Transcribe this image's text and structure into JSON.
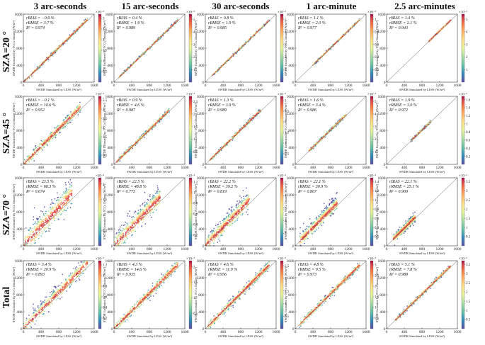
{
  "columns": [
    "3 arc-seconds",
    "15 arc-seconds",
    "30 arc-seconds",
    "1 arc-minute",
    "2.5 arc-minutes"
  ],
  "rows": [
    "SZA=20 °",
    "SZA=45 °",
    "SZA=70 °",
    "Total"
  ],
  "axes": {
    "xlabel": "SWDR Simulated by LESS (W/m²)",
    "ylabel": "SWDR Estimated by TCCs Dataset (W/m²)",
    "ticks": [
      "0",
      "400",
      "800",
      "1200",
      "1600"
    ],
    "lim": [
      0,
      1600
    ]
  },
  "chart_data": {
    "type": "scatter",
    "subtype": "density-scatter-grid",
    "xlabel": "SWDR Simulated by LESS (W/m²)",
    "ylabel": "SWDR Estimated by TCCs Dataset (W/m²)",
    "xlim": [
      0,
      1600
    ],
    "ylim": [
      0,
      1600
    ],
    "reference_line": "1:1",
    "colorbar_scale_label": "×10⁻³",
    "panels": [
      {
        "row": "SZA=20 °",
        "col": "3 arc-seconds",
        "rbias": "rBIAS = −0.9 %",
        "rrmse": "rRMSE = 3.7 %",
        "r2": "R² = 0.974",
        "xmin": 0,
        "xmax": 1450,
        "spread": 0.35,
        "cb_ticks": [
          "0.5",
          "1",
          "1.5",
          "2",
          "2.5",
          "3"
        ]
      },
      {
        "row": "SZA=20 °",
        "col": "15 arc-seconds",
        "rbias": "rBIAS = 0.4 %",
        "rrmse": "rRMSE = 1.9 %",
        "r2": "R² = 0.989",
        "xmin": 100,
        "xmax": 1450,
        "spread": 0.22,
        "cb_ticks": [
          "1",
          "2",
          "3",
          "4",
          "5"
        ]
      },
      {
        "row": "SZA=20 °",
        "col": "30 arc-seconds",
        "rbias": "rBIAS = 0.8 %",
        "rrmse": "rRMSE = 1.9 %",
        "r2": "R² = 0.985",
        "xmin": 150,
        "xmax": 1450,
        "spread": 0.2,
        "cb_ticks": [
          "1",
          "2",
          "3",
          "4",
          "5"
        ]
      },
      {
        "row": "SZA=20 °",
        "col": "1 arc-minute",
        "rbias": "rBIAS = 1.1 %",
        "rrmse": "rRMSE = 2.0 %",
        "r2": "R² = 0.977",
        "xmin": 400,
        "xmax": 1450,
        "spread": 0.2,
        "cb_ticks": [
          "0.2",
          "0.4",
          "0.6",
          "0.8",
          "1"
        ]
      },
      {
        "row": "SZA=20 °",
        "col": "2.5 arc-minutes",
        "rbias": "rBIAS = 1.4 %",
        "rrmse": "rRMSE = 2.1 %",
        "r2": "R² = 0.943",
        "xmin": 950,
        "xmax": 1450,
        "spread": 0.12,
        "cb_ticks": [
          "1",
          "2",
          "3",
          "4",
          "5"
        ]
      },
      {
        "row": "SZA=45 °",
        "col": "3 arc-seconds",
        "rbias": "rBIAS = −0.1 %",
        "rrmse": "rRMSE = 10.6 %",
        "r2": "R² = 0.952",
        "xmin": 0,
        "xmax": 1300,
        "spread": 0.9,
        "cb_ticks": [
          "0.5",
          "1",
          "1.5",
          "2",
          "2.5",
          "3",
          "3.5"
        ]
      },
      {
        "row": "SZA=45 °",
        "col": "15 arc-seconds",
        "rbias": "rBIAS = 0.9 %",
        "rrmse": "rRMSE = 4.6 %",
        "r2": "R² = 0.987",
        "xmin": 50,
        "xmax": 1250,
        "spread": 0.4,
        "cb_ticks": [
          "0.5",
          "1",
          "1.5",
          "2",
          "2.5"
        ]
      },
      {
        "row": "SZA=45 °",
        "col": "30 arc-seconds",
        "rbias": "rBIAS = 1.3 %",
        "rrmse": "rRMSE = 3.9 %",
        "r2": "R² = 0.989",
        "xmin": 100,
        "xmax": 1250,
        "spread": 0.35,
        "cb_ticks": [
          "0.5",
          "1",
          "1.5",
          "2",
          "2.5",
          "3"
        ]
      },
      {
        "row": "SZA=45 °",
        "col": "1 arc-minute",
        "rbias": "rBIAS = 1.6 %",
        "rrmse": "rRMSE = 3.4 %",
        "r2": "R² = 0.986",
        "xmin": 300,
        "xmax": 1150,
        "spread": 0.3,
        "cb_ticks": [
          "1",
          "2",
          "3",
          "4",
          "5"
        ]
      },
      {
        "row": "SZA=45 °",
        "col": "2.5 arc-minutes",
        "rbias": "rBIAS = 1.9 %",
        "rrmse": "rRMSE = 3.0 %",
        "r2": "R² = 0.972",
        "xmin": 550,
        "xmax": 1000,
        "spread": 0.2,
        "cb_ticks": [
          "0.2",
          "0.4",
          "0.6",
          "0.8",
          "1",
          "1.2",
          "1.4",
          "1.6"
        ]
      },
      {
        "row": "SZA=70 °",
        "col": "3 arc-seconds",
        "rbias": "rBIAS = 23.5 %",
        "rrmse": "rRMSE = 68.3 %",
        "r2": "R² = 0.674",
        "xmin": 0,
        "xmax": 1100,
        "spread": 2.2,
        "cb_ticks": [
          "0.5",
          "1",
          "1.5",
          "2"
        ]
      },
      {
        "row": "SZA=70 °",
        "col": "15 arc-seconds",
        "rbias": "rBIAS = 22.5 %",
        "rrmse": "rRMSE = 48.8 %",
        "r2": "R² = 0.773",
        "xmin": 0,
        "xmax": 1050,
        "spread": 1.8,
        "cb_ticks": [
          "0.2",
          "0.4",
          "0.6",
          "0.8",
          "1",
          "1.2"
        ]
      },
      {
        "row": "SZA=70 °",
        "col": "30 arc-seconds",
        "rbias": "rBIAS = 22.2 %",
        "rrmse": "rRMSE = 39.2 %",
        "r2": "R² = 0.819",
        "xmin": 0,
        "xmax": 1000,
        "spread": 1.5,
        "cb_ticks": [
          "1",
          "2",
          "3",
          "4",
          "5"
        ]
      },
      {
        "row": "SZA=70 °",
        "col": "1 arc-minute",
        "rbias": "rBIAS = 22.1 %",
        "rrmse": "rRMSE = 30.9 %",
        "r2": "R² = 0.867",
        "xmin": 100,
        "xmax": 950,
        "spread": 1.2,
        "cb_ticks": [
          "0.2",
          "0.4",
          "0.6",
          "0.8",
          "1",
          "1.2",
          "1.4"
        ]
      },
      {
        "row": "SZA=70 °",
        "col": "2.5 arc-minutes",
        "rbias": "rBIAS = 22.1 %",
        "rrmse": "rRMSE = 25.1 %",
        "r2": "R² = 0.900",
        "xmin": 150,
        "xmax": 650,
        "spread": 0.8,
        "cb_ticks": [
          "0.5",
          "1",
          "1.5",
          "2",
          "2.5",
          "3",
          "3.5"
        ]
      },
      {
        "row": "Total",
        "col": "3 arc-seconds",
        "rbias": "rBIAS = 3.4 %",
        "rrmse": "rRMSE = 20.9 %",
        "r2": "R² = 0.893",
        "xmin": 0,
        "xmax": 1450,
        "spread": 1.3,
        "cb_ticks": [
          "0.2",
          "0.4",
          "0.6",
          "0.8",
          "1",
          "1.2"
        ]
      },
      {
        "row": "Total",
        "col": "15 arc-seconds",
        "rbias": "rBIAS = 4.3 %",
        "rrmse": "rRMSE = 14.6 %",
        "r2": "R² = 0.935",
        "xmin": 0,
        "xmax": 1450,
        "spread": 0.9,
        "cb_ticks": [
          "0.5",
          "1",
          "1.5",
          "2"
        ]
      },
      {
        "row": "Total",
        "col": "30 arc-seconds",
        "rbias": "rBIAS = 4.6 %",
        "rrmse": "rRMSE = 11.9 %",
        "r2": "R² = 0.956",
        "xmin": 50,
        "xmax": 1450,
        "spread": 0.8,
        "cb_ticks": [
          "0.5",
          "1",
          "1.5",
          "2",
          "2.5"
        ]
      },
      {
        "row": "Total",
        "col": "1 arc-minute",
        "rbias": "rBIAS = 4.8 %",
        "rrmse": "rRMSE = 9.5 %",
        "r2": "R² = 0.973",
        "xmin": 100,
        "xmax": 1450,
        "spread": 0.6,
        "cb_ticks": [
          "0.5",
          "1",
          "1.5",
          "2",
          "2.5",
          "3"
        ]
      },
      {
        "row": "Total",
        "col": "2.5 arc-minutes",
        "rbias": "rBIAS = 5.1 %",
        "rrmse": "rRMSE = 7.8 %",
        "r2": "R² = 0.989",
        "xmin": 200,
        "xmax": 1450,
        "spread": 0.4,
        "cb_ticks": [
          "0.5",
          "1",
          "1.5",
          "2",
          "2.5",
          "3",
          "3.5"
        ]
      }
    ]
  },
  "colors": {
    "frame": "#333333",
    "oneToOne": "#555555",
    "colormap": [
      "#5e4fa2",
      "#3288bd",
      "#66c2a5",
      "#abdda4",
      "#e6f598",
      "#fee08b",
      "#fdae61",
      "#f46d43",
      "#d53e4f",
      "#9e0142"
    ]
  }
}
